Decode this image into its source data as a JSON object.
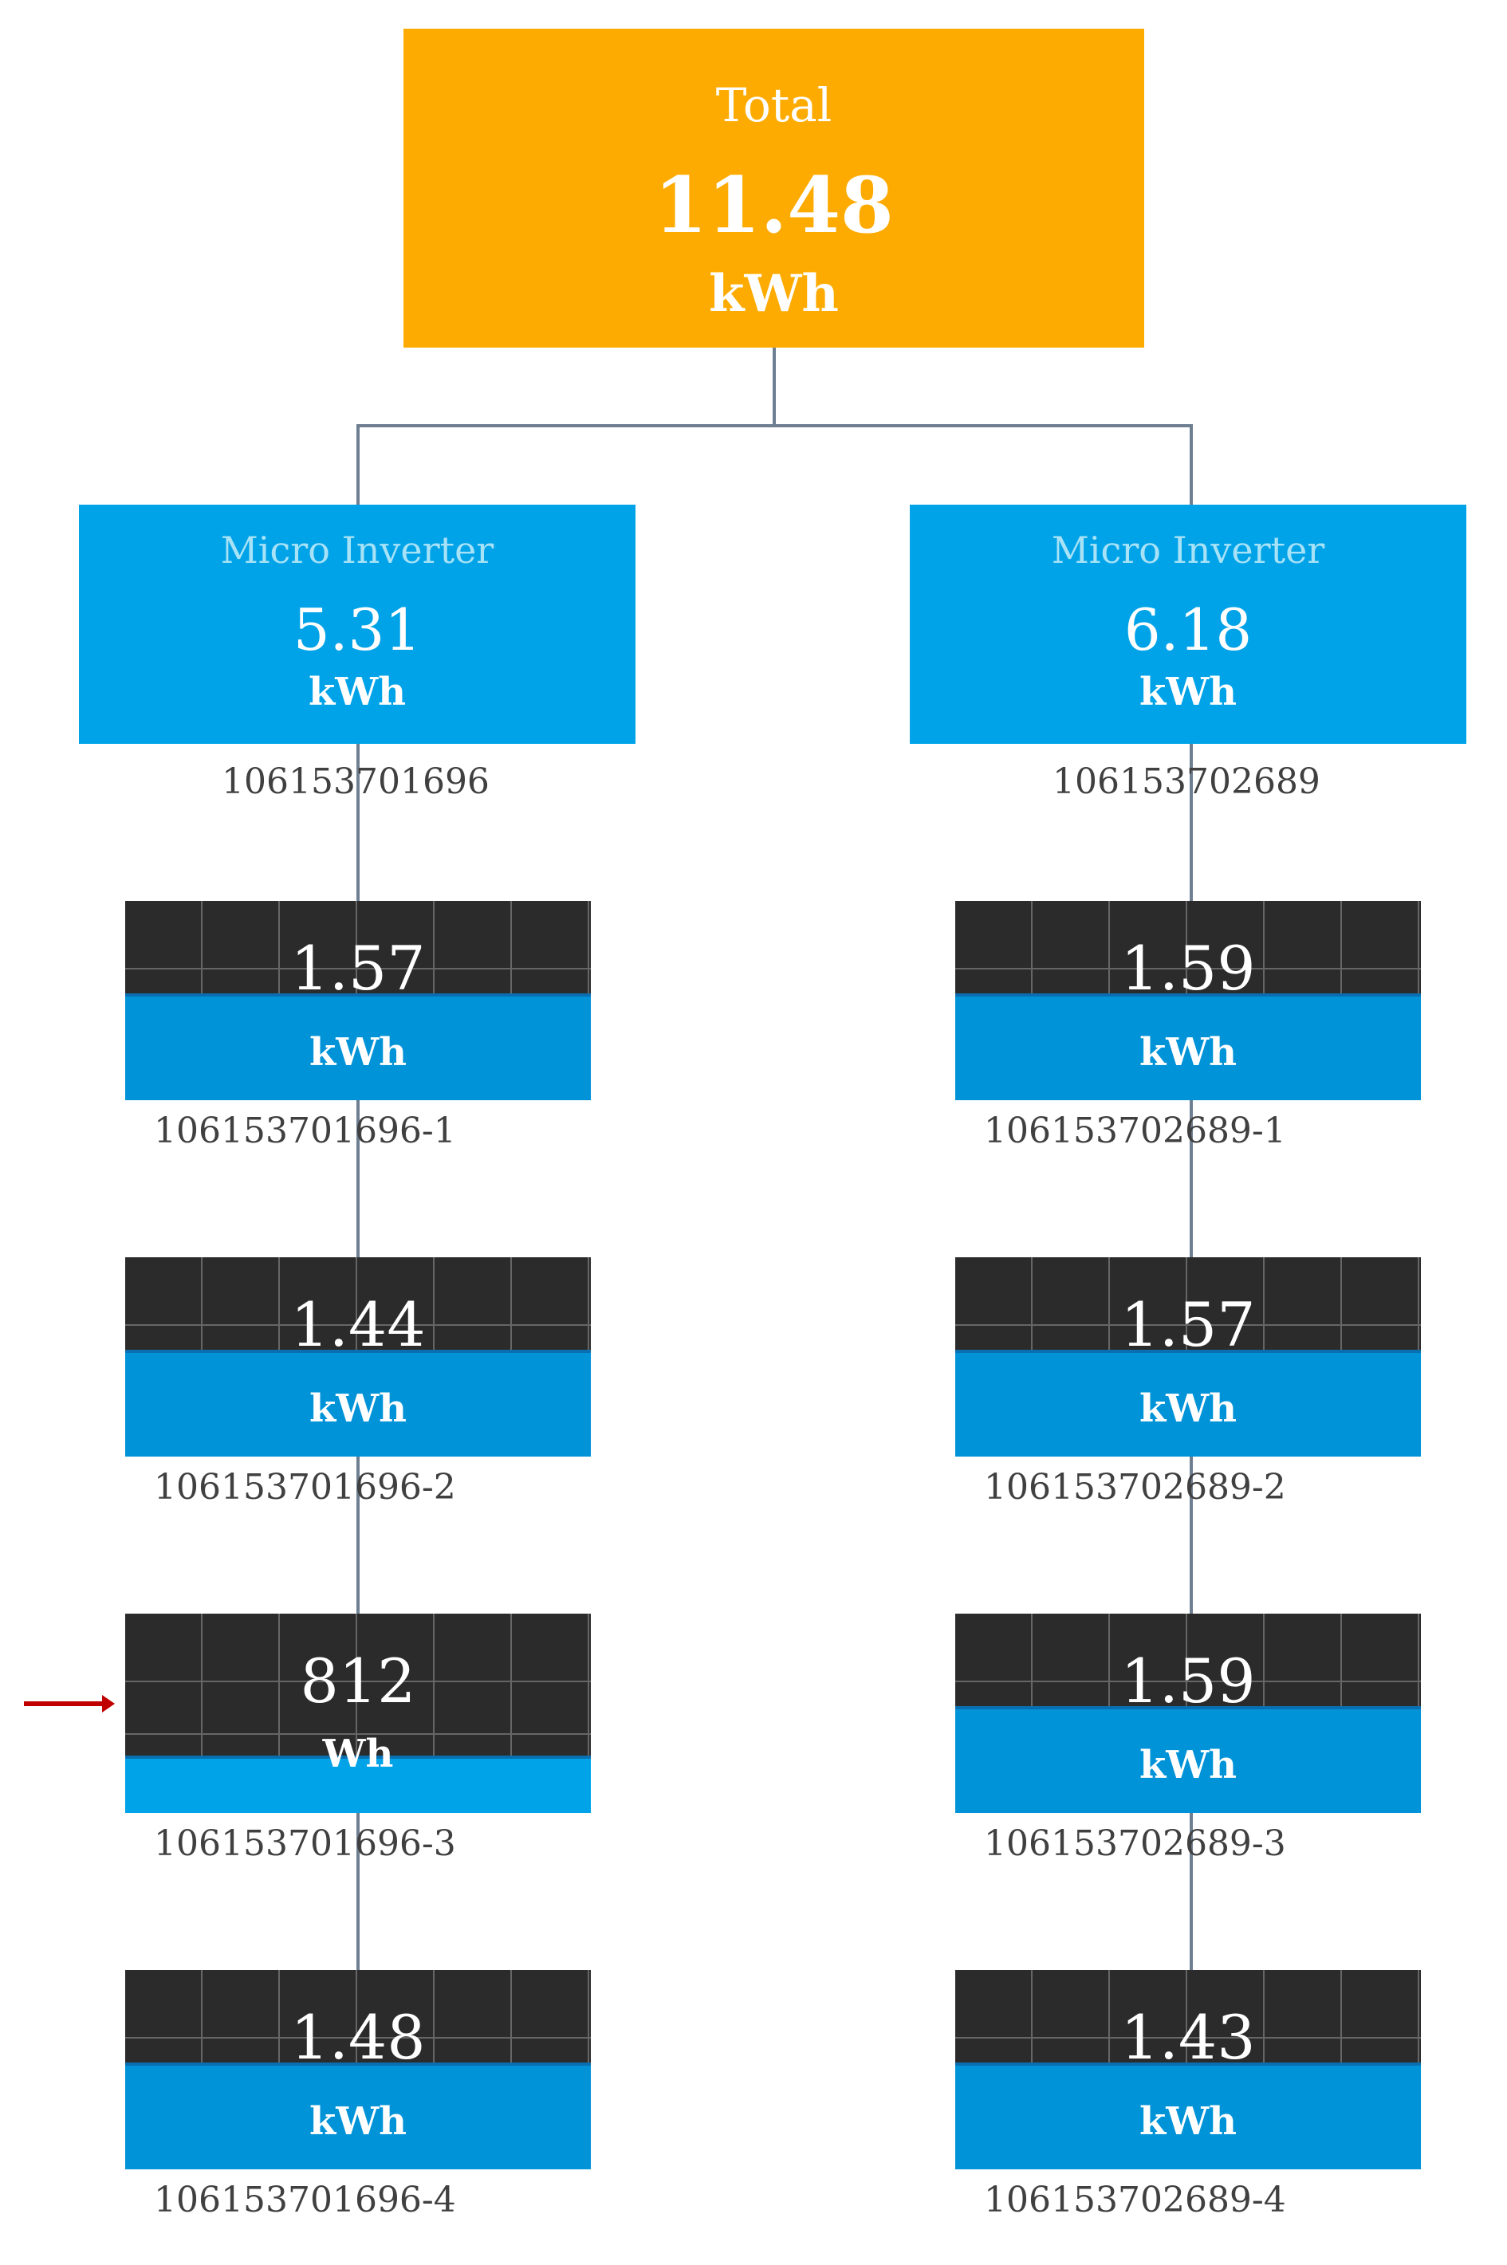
{
  "total": {
    "title": "Total",
    "value": "11.48",
    "unit": "kWh"
  },
  "inverters": [
    {
      "title": "Micro Inverter",
      "value": "5.31",
      "unit": "kWh",
      "serial": "106153701696",
      "panels": [
        {
          "value": "1.57",
          "unit": "kWh",
          "serial": "106153701696-1"
        },
        {
          "value": "1.44",
          "unit": "kWh",
          "serial": "106153701696-2"
        },
        {
          "value": "812",
          "unit": "Wh",
          "serial": "106153701696-3"
        },
        {
          "value": "1.48",
          "unit": "kWh",
          "serial": "106153701696-4"
        }
      ]
    },
    {
      "title": "Micro Inverter",
      "value": "6.18",
      "unit": "kWh",
      "serial": "106153702689",
      "panels": [
        {
          "value": "1.59",
          "unit": "kWh",
          "serial": "106153702689-1"
        },
        {
          "value": "1.57",
          "unit": "kWh",
          "serial": "106153702689-2"
        },
        {
          "value": "1.59",
          "unit": "kWh",
          "serial": "106153702689-3"
        },
        {
          "value": "1.43",
          "unit": "kWh",
          "serial": "106153702689-4"
        }
      ]
    }
  ],
  "colors": {
    "total": "#fdab00",
    "inverter": "#00a3e8",
    "panel_dark": "#2b2b2b",
    "panel_blue": "#0093d8",
    "connector": "#6f7f92",
    "arrow": "#c00000"
  }
}
